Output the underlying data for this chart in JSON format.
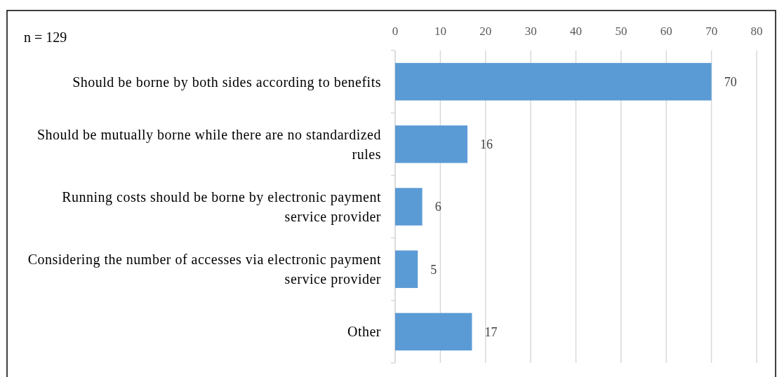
{
  "chart_data": {
    "type": "bar",
    "orientation": "horizontal",
    "categories": [
      "Should be borne by both sides according to benefits",
      "Should be mutually borne while there are no standardized rules",
      "Running costs should be borne by electronic payment service provider",
      "Considering the number of accesses via electronic payment service provider",
      "Other"
    ],
    "values": [
      70,
      16,
      6,
      5,
      17
    ],
    "color": "#5b9bd5",
    "xlim": [
      0,
      80
    ],
    "xticks": [
      0,
      10,
      20,
      30,
      40,
      50,
      60,
      70,
      80
    ],
    "grid": "x",
    "data_labels": true,
    "annotations": [
      "n = 129"
    ]
  }
}
